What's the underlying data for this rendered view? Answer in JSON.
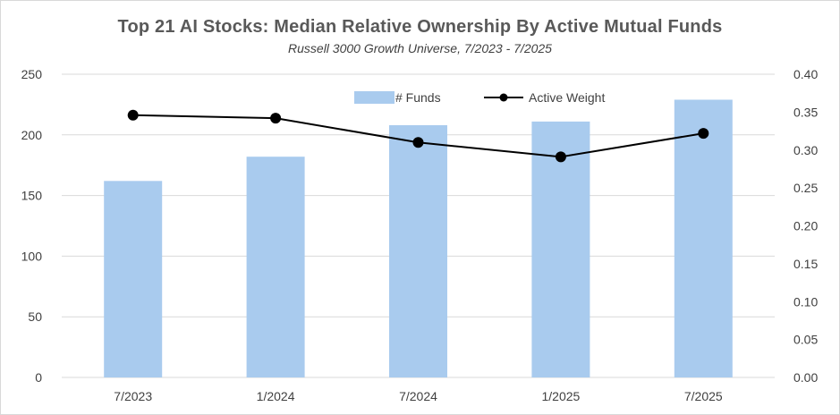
{
  "chart_data": {
    "type": "bar",
    "title": "Top 21 AI Stocks: Median Relative Ownership By Active Mutual Funds",
    "subtitle": "Russell 3000 Growth Universe, 7/2023 - 7/2025",
    "categories": [
      "7/2023",
      "1/2024",
      "7/2024",
      "1/2025",
      "7/2025"
    ],
    "series": [
      {
        "name": "# Funds",
        "type": "bar",
        "axis": "left",
        "color": "#a9cbee",
        "values": [
          162,
          182,
          208,
          211,
          229
        ]
      },
      {
        "name": "Active Weight",
        "type": "line",
        "axis": "right",
        "color": "#000000",
        "values": [
          0.346,
          0.342,
          0.31,
          0.291,
          0.322
        ]
      }
    ],
    "y_left": {
      "min": 0,
      "max": 250,
      "ticks": [
        0,
        50,
        100,
        150,
        200,
        250
      ],
      "tick_labels": [
        "0",
        "50",
        "100",
        "150",
        "200",
        "250"
      ]
    },
    "y_right": {
      "min": 0,
      "max": 0.4,
      "ticks": [
        0,
        0.05,
        0.1,
        0.15,
        0.2,
        0.25,
        0.3,
        0.35,
        0.4
      ],
      "tick_labels": [
        "0.00",
        "0.05",
        "0.10",
        "0.15",
        "0.20",
        "0.25",
        "0.30",
        "0.35",
        "0.40"
      ]
    },
    "grid": true,
    "legend_position": "top-center",
    "gridline_color": "#d9d9d9",
    "axis_text_color": "#404040"
  }
}
